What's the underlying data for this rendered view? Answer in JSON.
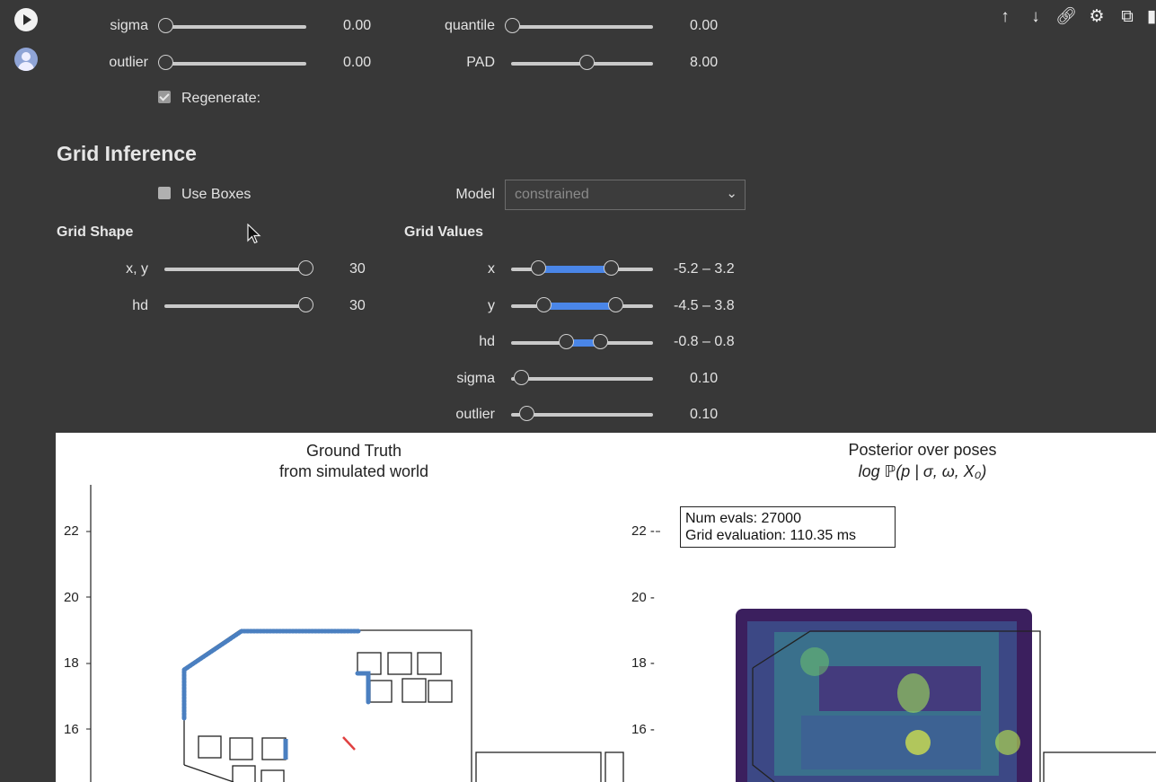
{
  "toolbar": {
    "icons": [
      "arrow-up-icon",
      "arrow-down-icon",
      "link-icon",
      "gear-icon",
      "mirror-icon",
      "trash-icon"
    ]
  },
  "top_controls": {
    "sigma": {
      "label": "sigma",
      "value": "0.00",
      "level": 0.0
    },
    "outlier": {
      "label": "outlier",
      "value": "0.00",
      "level": 0.0
    },
    "quantile": {
      "label": "quantile",
      "value": "0.00",
      "level": 0.0
    },
    "pad": {
      "label": "PAD",
      "value": "8.00",
      "level": 0.5
    },
    "regenerate": {
      "label": "Regenerate:",
      "checked": true
    }
  },
  "grid_inference": {
    "title": "Grid Inference",
    "use_boxes": {
      "label": "Use Boxes",
      "checked": false
    },
    "model": {
      "label": "Model",
      "selected": "constrained"
    },
    "grid_shape": {
      "heading": "Grid Shape",
      "xy": {
        "label": "x, y",
        "value": "30",
        "level": 1.0
      },
      "hd": {
        "label": "hd",
        "value": "30",
        "level": 1.0
      }
    },
    "grid_values": {
      "heading": "Grid Values",
      "x": {
        "label": "x",
        "value": "-5.2 – 3.2",
        "low": 0.19,
        "high": 0.71
      },
      "y": {
        "label": "y",
        "value": "-4.5 – 3.8",
        "low": 0.23,
        "high": 0.74
      },
      "hd": {
        "label": "hd",
        "value": "-0.8 – 0.8",
        "low": 0.38,
        "high": 0.62
      },
      "sigma": {
        "label": "sigma",
        "value": "0.10",
        "level": 0.07
      },
      "outlier": {
        "label": "outlier",
        "value": "0.10",
        "level": 0.11
      }
    }
  },
  "plots": {
    "left": {
      "title_line1": "Ground Truth",
      "title_line2": "from simulated world",
      "yticks": [
        "22",
        "20",
        "18",
        "16"
      ]
    },
    "right": {
      "title_line1": "Posterior over poses",
      "title_line2": "log ℙ(p | σ, ω, X₀)",
      "yticks": [
        "22 -",
        "20 -",
        "18 -",
        "16 -"
      ],
      "info_line1": "Num evals: 27000",
      "info_line2": "Grid evaluation: 110.35 ms"
    }
  },
  "colors": {
    "accent": "#4a86e8",
    "path": "#4a7fc0",
    "pose": "#e04040"
  }
}
